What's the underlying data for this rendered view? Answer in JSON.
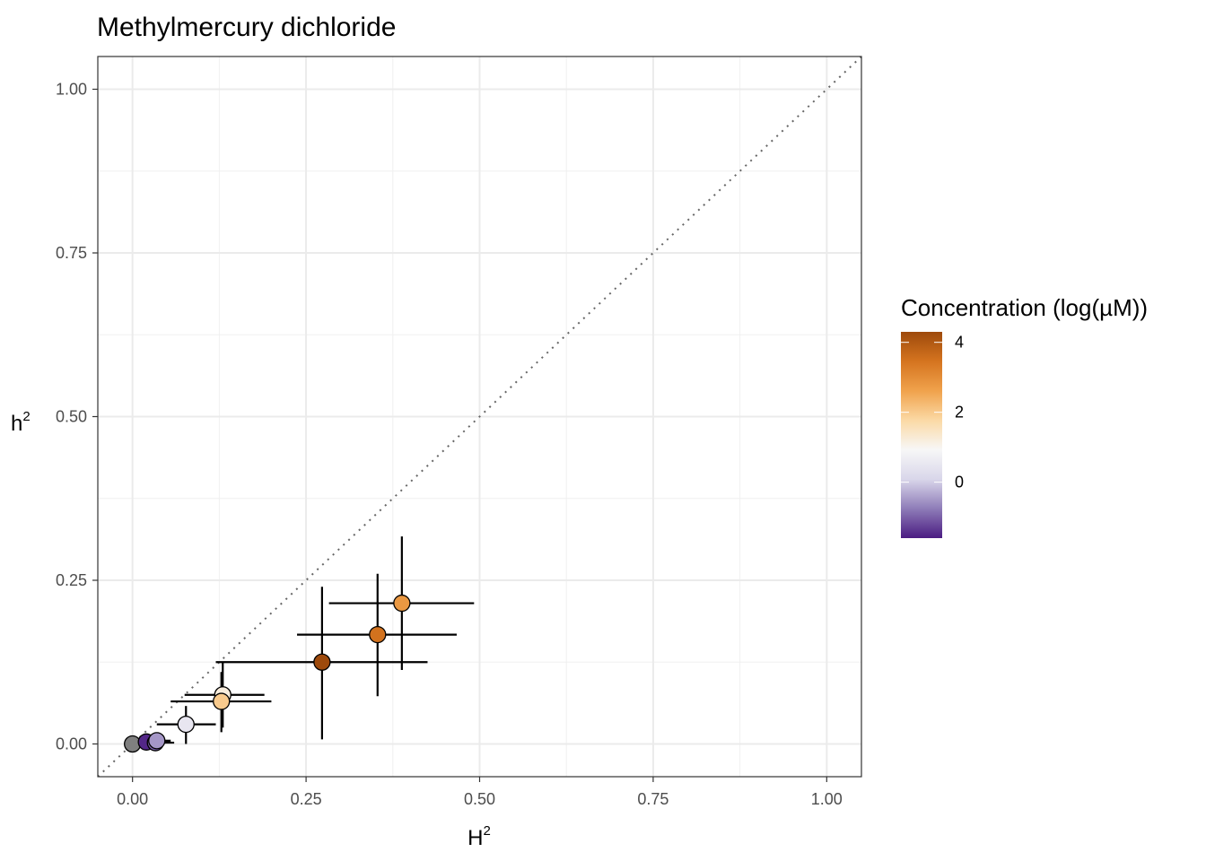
{
  "chart_data": {
    "type": "scatter",
    "title": "Methylmercury dichloride",
    "xlabel": {
      "base": "H",
      "sup": "2"
    },
    "ylabel": {
      "base": "h",
      "sup": "2"
    },
    "xlim": [
      -0.05,
      1.05
    ],
    "ylim": [
      -0.05,
      1.05
    ],
    "x_ticks": [
      0,
      0.25,
      0.5,
      0.75,
      1
    ],
    "x_tick_labels": [
      "0.00",
      "0.25",
      "0.50",
      "0.75",
      "1.00"
    ],
    "y_ticks": [
      0,
      0.25,
      0.5,
      0.75,
      1
    ],
    "y_tick_labels": [
      "0.00",
      "0.25",
      "0.50",
      "0.75",
      "1.00"
    ],
    "grid": true,
    "reference_line": {
      "slope": 1,
      "intercept": 0,
      "style": "dotted",
      "color": "#666666"
    },
    "legend": {
      "title": "Concentration (log(µM))",
      "placement": "right",
      "type": "colorbar",
      "range": [
        -1.6,
        4.3
      ],
      "ticks": [
        0,
        2,
        4
      ],
      "tick_labels": [
        "0",
        "2",
        "4"
      ],
      "colors": [
        "#4b1c82",
        "#8e7cb8",
        "#d9d6ea",
        "#f7f7f7",
        "#fbd9a5",
        "#f0a24c",
        "#d5741f",
        "#9e4a0c"
      ]
    },
    "na_color": "#7f7f7f",
    "points": [
      {
        "x": 0.0,
        "y": 0.0,
        "xerr": [
          0.0,
          0.0
        ],
        "yerr": [
          0.0,
          0.0
        ],
        "conc": null
      },
      {
        "x": 0.02,
        "y": 0.003,
        "xerr": [
          0.005,
          0.03
        ],
        "yerr": [
          0.0,
          0.008
        ],
        "conc": -1.5
      },
      {
        "x": 0.033,
        "y": 0.002,
        "xerr": [
          0.005,
          0.06
        ],
        "yerr": [
          0.0,
          0.008
        ],
        "conc": -1.0
      },
      {
        "x": 0.035,
        "y": 0.005,
        "xerr": [
          0.015,
          0.055
        ],
        "yerr": [
          0.0,
          0.01
        ],
        "conc": -0.5
      },
      {
        "x": 0.077,
        "y": 0.03,
        "xerr": [
          0.035,
          0.12
        ],
        "yerr": [
          0.0,
          0.058
        ],
        "conc": 0.5
      },
      {
        "x": 0.13,
        "y": 0.075,
        "xerr": [
          0.075,
          0.19
        ],
        "yerr": [
          0.025,
          0.125
        ],
        "conc": 1.2
      },
      {
        "x": 0.128,
        "y": 0.065,
        "xerr": [
          0.055,
          0.2
        ],
        "yerr": [
          0.018,
          0.11
        ],
        "conc": 2.0
      },
      {
        "x": 0.273,
        "y": 0.125,
        "xerr": [
          0.12,
          0.425
        ],
        "yerr": [
          0.007,
          0.24
        ],
        "conc": 4.3
      },
      {
        "x": 0.353,
        "y": 0.167,
        "xerr": [
          0.237,
          0.467
        ],
        "yerr": [
          0.073,
          0.26
        ],
        "conc": 3.5
      },
      {
        "x": 0.388,
        "y": 0.215,
        "xerr": [
          0.283,
          0.492
        ],
        "yerr": [
          0.113,
          0.317
        ],
        "conc": 2.8
      }
    ]
  }
}
